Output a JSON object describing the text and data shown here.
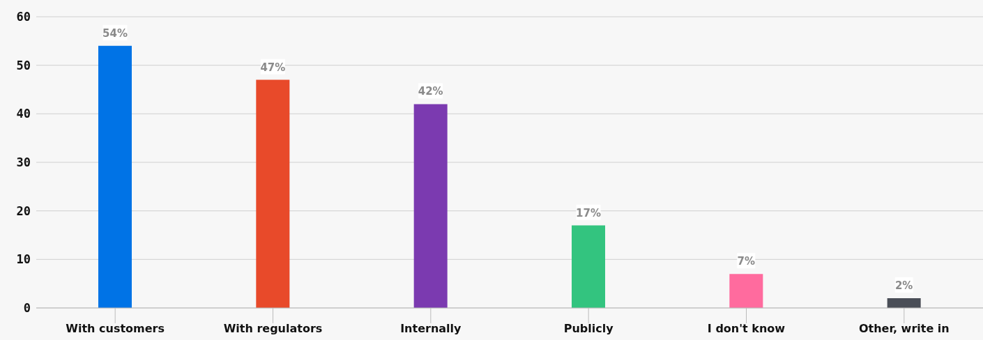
{
  "chart_data": {
    "type": "bar",
    "categories": [
      "With customers",
      "With regulators",
      "Internally",
      "Publicly",
      "I don't know",
      "Other, write in"
    ],
    "values": [
      54,
      47,
      42,
      17,
      7,
      2
    ],
    "colors": [
      "#0073e6",
      "#e84a2a",
      "#7b3ab0",
      "#33c47f",
      "#ff6b9e",
      "#4a4e57"
    ],
    "value_labels": [
      "54%",
      "47%",
      "42%",
      "17%",
      "7%",
      "2%"
    ],
    "ylim": [
      0,
      60
    ],
    "yticks": [
      0,
      10,
      20,
      30,
      40,
      50,
      60
    ],
    "grid": "y"
  }
}
